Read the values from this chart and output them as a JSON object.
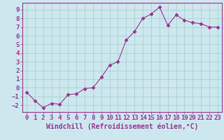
{
  "x": [
    0,
    1,
    2,
    3,
    4,
    5,
    6,
    7,
    8,
    9,
    10,
    11,
    12,
    13,
    14,
    15,
    16,
    17,
    18,
    19,
    20,
    21,
    22,
    23
  ],
  "y": [
    -0.5,
    -1.5,
    -2.3,
    -1.8,
    -1.9,
    -0.8,
    -0.7,
    -0.1,
    0.0,
    1.2,
    2.6,
    3.0,
    5.5,
    6.5,
    8.0,
    8.5,
    9.3,
    7.2,
    8.4,
    7.8,
    7.5,
    7.4,
    7.0,
    7.0
  ],
  "line_color": "#993399",
  "marker": "D",
  "marker_size": 2.5,
  "bg_color": "#cce8ee",
  "grid_color": "#aacccc",
  "axis_color": "#993399",
  "spine_color": "#993399",
  "xlabel": "Windchill (Refroidissement éolien,°C)",
  "xlabel_fontsize": 7,
  "tick_fontsize": 6.5,
  "ylim": [
    -2.8,
    9.8
  ],
  "xlim": [
    -0.5,
    23.5
  ],
  "yticks": [
    -2,
    -1,
    0,
    1,
    2,
    3,
    4,
    5,
    6,
    7,
    8,
    9
  ],
  "xticks": [
    0,
    1,
    2,
    3,
    4,
    5,
    6,
    7,
    8,
    9,
    10,
    11,
    12,
    13,
    14,
    15,
    16,
    17,
    18,
    19,
    20,
    21,
    22,
    23
  ]
}
